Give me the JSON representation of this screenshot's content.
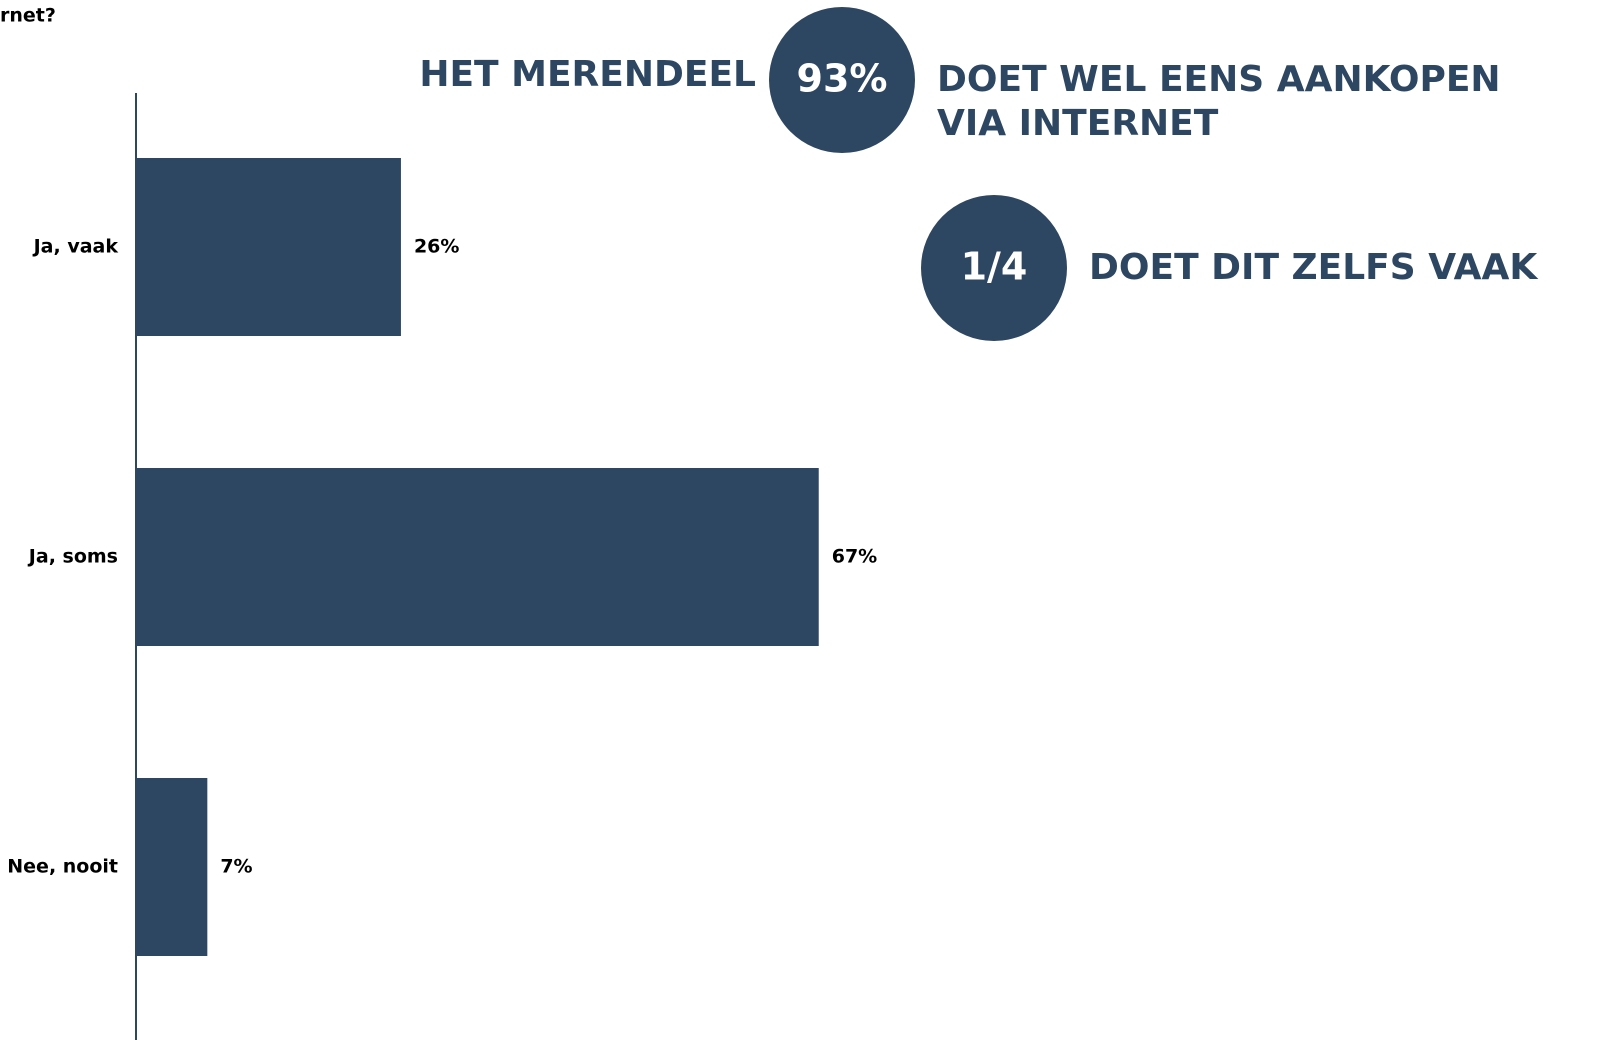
{
  "chart_data": {
    "type": "bar",
    "orientation": "horizontal",
    "title": "rnet?",
    "categories": [
      "Ja, vaak",
      "Ja, soms",
      "Nee, nooit"
    ],
    "values": [
      26,
      67,
      7
    ],
    "value_labels": [
      "26%",
      "67%",
      "7%"
    ],
    "color": "#2d4662",
    "annotations": [
      {
        "before": "HET MERENDEEL",
        "badge": "93%",
        "after": [
          "DOET WEL EENS AANKOPEN",
          "VIA INTERNET"
        ]
      },
      {
        "badge": "1/4",
        "after": [
          "DOET DIT ZELFS VAAK"
        ]
      }
    ]
  }
}
